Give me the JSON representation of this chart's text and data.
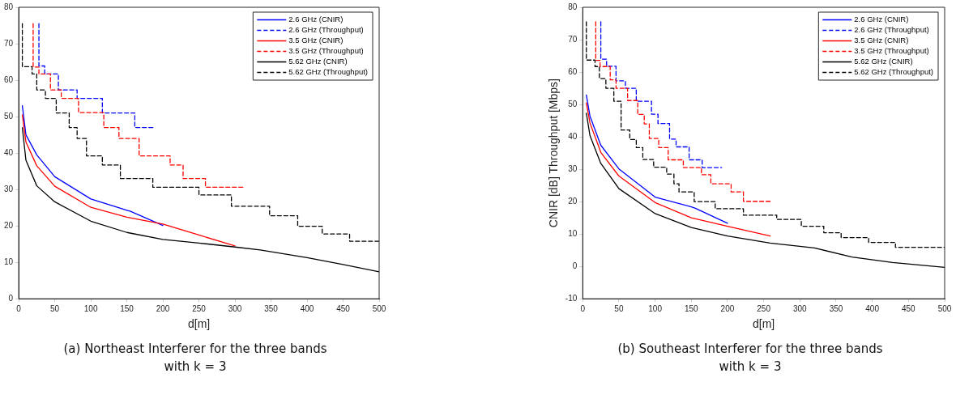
{
  "chart_data": [
    {
      "type": "line",
      "title": "(a) Northeast Interferer for the three bands with k = 3",
      "xlabel": "d[m]",
      "xlim": [
        0,
        500
      ],
      "xticks": [
        0,
        50,
        100,
        150,
        200,
        250,
        300,
        350,
        400,
        450,
        500
      ],
      "ylim": [
        0,
        80
      ],
      "yticks": [
        0,
        10,
        20,
        30,
        40,
        50,
        60,
        70,
        80
      ],
      "legend": "top right",
      "series": [
        {
          "name": "2.6 GHz (CNIR)",
          "line_style": "solid",
          "color": "#0000ff",
          "x": [
            5,
            10,
            25,
            50,
            100,
            150,
            155,
            200
          ],
          "values": [
            53,
            45,
            39.5,
            33.5,
            27.4,
            24.3,
            24,
            20.1
          ]
        },
        {
          "name": "2.6 GHz (Throughput)",
          "type": "step",
          "line_style": "dashed",
          "color": "#0000ff",
          "x": [
            28,
            36,
            55,
            81,
            116,
            161,
            173,
            188
          ],
          "values": [
            75.5,
            63.9,
            61.7,
            57.3,
            55,
            51,
            47,
            47
          ]
        },
        {
          "name": "3.5 GHz (CNIR)",
          "line_style": "solid",
          "color": "#ff0000",
          "x": [
            5,
            10,
            25,
            50,
            100,
            150,
            200,
            250,
            300
          ],
          "values": [
            50.5,
            43,
            36.5,
            30.9,
            25.1,
            22.4,
            20.5,
            17.5,
            14.5
          ]
        },
        {
          "name": "3.5 GHz (Throughput)",
          "type": "step",
          "line_style": "dashed",
          "color": "#ff0000",
          "x": [
            20,
            28,
            44,
            59,
            83,
            118,
            139,
            167,
            210,
            228,
            259,
            293,
            312
          ],
          "values": [
            75.5,
            63.6,
            61.7,
            57.3,
            55,
            51.1,
            47,
            44,
            39.2,
            36.7,
            33,
            30.6,
            30.6
          ]
        },
        {
          "name": "5.62 GHz (CNIR)",
          "line_style": "solid",
          "color": "#000000",
          "x": [
            5,
            10,
            25,
            50,
            100,
            150,
            200,
            250,
            300,
            335,
            400,
            450,
            500
          ],
          "values": [
            47,
            38,
            31,
            26.6,
            21.3,
            18.2,
            16.3,
            15.3,
            14.2,
            13.4,
            11.3,
            9.4,
            7.4
          ]
        },
        {
          "name": "5.62 GHz (Throughput)",
          "type": "step",
          "line_style": "dashed",
          "color": "#000000",
          "x": [
            5,
            18.5,
            25,
            37,
            52,
            70,
            81,
            94,
            116,
            141,
            186,
            250,
            295,
            348,
            387,
            421,
            459,
            476,
            500
          ],
          "values": [
            75.5,
            63.7,
            61.7,
            57.3,
            55,
            51,
            47,
            44,
            39.2,
            36.7,
            33,
            30.6,
            28.5,
            25.4,
            22.8,
            19.9,
            17.8,
            15.8,
            15.8
          ]
        }
      ]
    },
    {
      "type": "line",
      "title": "(b) Southeast Interferer for the three bands with k = 3",
      "xlabel": "d[m]",
      "ylabel": "CNIR [dB] Throughput [Mbps]",
      "xlim": [
        0,
        500
      ],
      "xticks": [
        0,
        50,
        100,
        150,
        200,
        250,
        300,
        350,
        400,
        450,
        500
      ],
      "ylim": [
        -10,
        80
      ],
      "yticks": [
        -10,
        0,
        10,
        20,
        30,
        40,
        50,
        60,
        70,
        80
      ],
      "legend": "top right",
      "series": [
        {
          "name": "2.6 GHz (CNIR)",
          "line_style": "solid",
          "color": "#0000ff",
          "x": [
            5,
            10,
            25,
            50,
            100,
            150,
            155,
            200
          ],
          "values": [
            52.9,
            46.4,
            37.4,
            30.1,
            21.4,
            18.4,
            18,
            13.3
          ]
        },
        {
          "name": "2.6 GHz (Throughput)",
          "type": "step",
          "line_style": "dashed",
          "color": "#0000ff",
          "x": [
            25,
            33,
            46,
            59,
            74,
            95,
            104,
            120,
            129,
            147,
            165,
            177,
            192
          ],
          "values": [
            75.5,
            64,
            61.8,
            57.3,
            55,
            51,
            47,
            44.1,
            39.3,
            36.9,
            32.9,
            30.5,
            30.5
          ]
        },
        {
          "name": "3.5 GHz (CNIR)",
          "line_style": "solid",
          "color": "#ff0000",
          "x": [
            5,
            10,
            25,
            50,
            100,
            150,
            200,
            259
          ],
          "values": [
            50.5,
            44.3,
            35.2,
            27.9,
            19.7,
            15,
            12.4,
            9.4
          ]
        },
        {
          "name": "3.5 GHz (Throughput)",
          "type": "step",
          "line_style": "dashed",
          "color": "#ff0000",
          "x": [
            18,
            24,
            38,
            46,
            62,
            76,
            85,
            92,
            105,
            118,
            139,
            164,
            177,
            205,
            222,
            240,
            261
          ],
          "values": [
            75.5,
            63.6,
            61.7,
            57.6,
            55,
            51.2,
            46.9,
            44,
            39.5,
            36.7,
            32.9,
            30.5,
            28.3,
            25.5,
            23,
            20.1,
            20.1
          ]
        },
        {
          "name": "5.62 GHz (CNIR)",
          "line_style": "solid",
          "color": "#000000",
          "x": [
            5,
            10,
            25,
            50,
            100,
            150,
            200,
            259,
            320,
            372,
            428,
            500
          ],
          "values": [
            47.3,
            40.4,
            31.8,
            24,
            16.3,
            12,
            9.4,
            7.2,
            5.7,
            2.9,
            1.2,
            -0.3
          ]
        },
        {
          "name": "5.62 GHz (Throughput)",
          "type": "step",
          "line_style": "dashed",
          "color": "#000000",
          "x": [
            5,
            17,
            23,
            32,
            43,
            53,
            65,
            74,
            83,
            98,
            116,
            126,
            133,
            154,
            183,
            222,
            268,
            302,
            333,
            357,
            395,
            432,
            485,
            500
          ],
          "values": [
            75.5,
            63.7,
            61.7,
            58,
            55,
            51,
            42.1,
            39.2,
            36.7,
            33,
            30.6,
            28.5,
            25.5,
            23,
            20,
            17.8,
            15.8,
            14.5,
            12.4,
            10.4,
            8.9,
            7.4,
            5.9,
            5.9
          ]
        }
      ]
    }
  ]
}
